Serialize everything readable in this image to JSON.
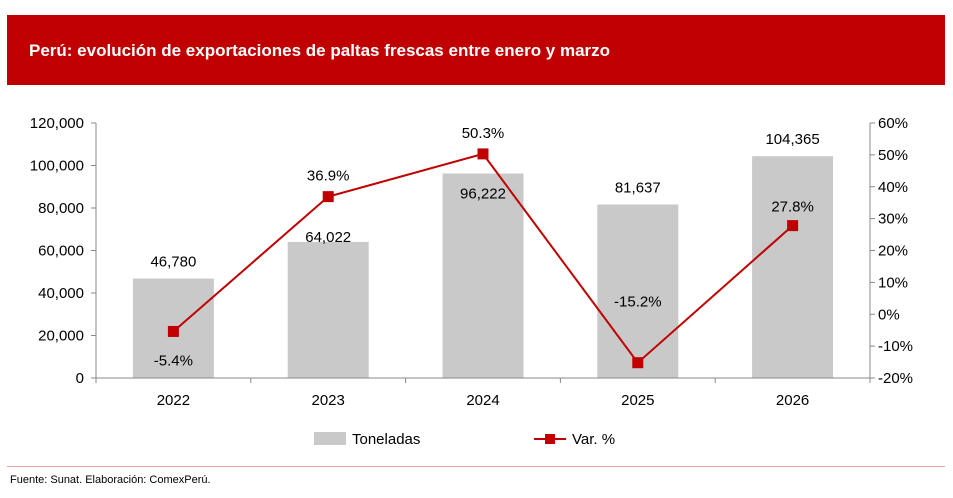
{
  "header": {
    "title": "Perú: evolución de exportaciones de paltas frescas entre enero y marzo"
  },
  "source": "Fuente: Sunat. Elaboración: ComexPerú.",
  "colors": {
    "header_bg": "#c00000",
    "bars": "#c9c9c9",
    "line": "#c00000"
  },
  "chart_data": {
    "type": "bar",
    "categories": [
      "2022",
      "2023",
      "2024",
      "2025",
      "2026"
    ],
    "series": [
      {
        "name": "Toneladas",
        "type": "bar",
        "axis": "left",
        "values": [
          46780,
          64022,
          96222,
          81637,
          104365
        ],
        "labels": [
          "46,780",
          "64,022",
          "96,222",
          "81,637",
          "104,365"
        ]
      },
      {
        "name": "Var. %",
        "type": "line",
        "axis": "right",
        "values": [
          -5.4,
          36.9,
          50.3,
          -15.2,
          27.8
        ],
        "labels": [
          "-5.4%",
          "36.9%",
          "50.3%",
          "-15.2%",
          "27.8%"
        ]
      }
    ],
    "y_left": {
      "ylim": [
        0,
        120000
      ],
      "ticks": [
        0,
        20000,
        40000,
        60000,
        80000,
        100000,
        120000
      ],
      "tick_labels": [
        "0",
        "20,000",
        "40,000",
        "60,000",
        "80,000",
        "100,000",
        "120,000"
      ]
    },
    "y_right": {
      "ylim": [
        -20,
        60
      ],
      "ticks": [
        -20,
        -10,
        0,
        10,
        20,
        30,
        40,
        50,
        60
      ],
      "tick_labels": [
        "-20%",
        "-10%",
        "0%",
        "10%",
        "20%",
        "30%",
        "40%",
        "50%",
        "60%"
      ]
    },
    "grid": false,
    "legend": "bottom-center"
  }
}
